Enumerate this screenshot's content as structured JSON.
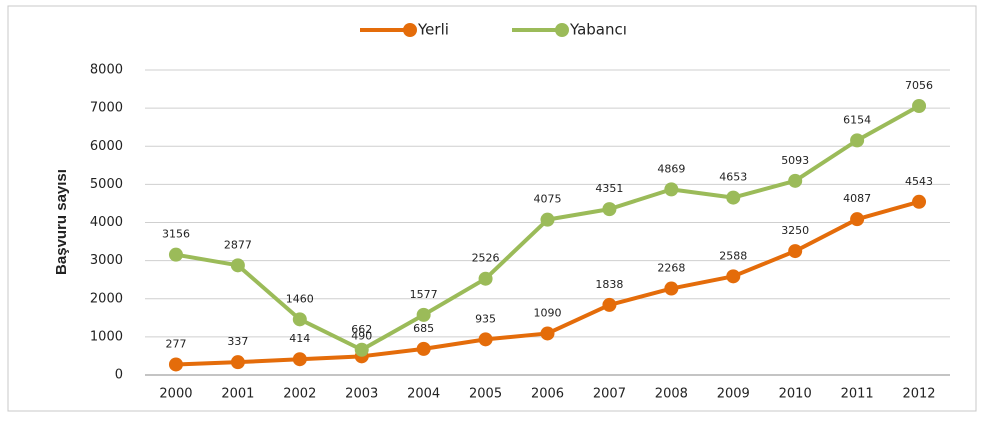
{
  "chart_data": {
    "type": "line",
    "y_label": "Başvuru sayısı",
    "categories": [
      "2000",
      "2001",
      "2002",
      "2003",
      "2004",
      "2005",
      "2006",
      "2007",
      "2008",
      "2009",
      "2010",
      "2011",
      "2012"
    ],
    "series": [
      {
        "name": "Yerli",
        "color": "#e46c0a",
        "values": [
          277,
          337,
          414,
          490,
          685,
          935,
          1090,
          1838,
          2268,
          2588,
          3250,
          4087,
          4543
        ]
      },
      {
        "name": "Yabancı",
        "color": "#9bbb59",
        "values": [
          3156,
          2877,
          1460,
          662,
          1577,
          2526,
          4075,
          4351,
          4869,
          4653,
          5093,
          6154,
          7056
        ]
      }
    ],
    "ylim": [
      0,
      8000
    ],
    "yticks": [
      0,
      1000,
      2000,
      3000,
      4000,
      5000,
      6000,
      7000,
      8000
    ],
    "grid": true,
    "legend": "top"
  }
}
